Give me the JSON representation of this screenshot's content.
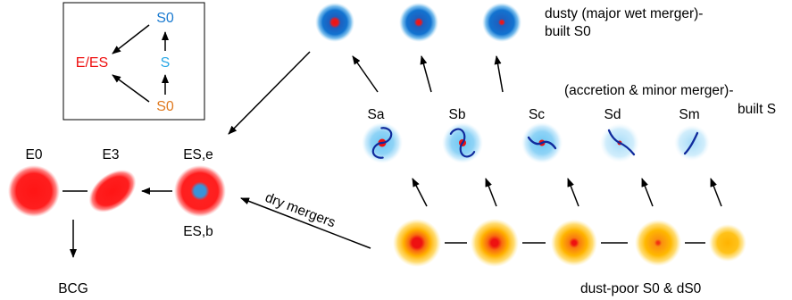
{
  "colors": {
    "red": "#ee1111",
    "e_red": "#ff2222",
    "blue_dark": "#0a6ac8",
    "blue_mid": "#2f95e0",
    "cyan": "#2aa8e6",
    "orange": "#e07a20",
    "yellow": "#ffc400",
    "spiral_blue": "#102a9c",
    "s_cyan_light": "#b9e6fb"
  },
  "inset": {
    "label_s0_top": "S0",
    "label_s": "S",
    "label_s0_bottom": "S0",
    "label_e_es": "E/ES"
  },
  "labels": {
    "dusty": [
      "dusty (major wet merger)-",
      "built S0"
    ],
    "accretion": [
      "(accretion & minor merger)-",
      "built S"
    ],
    "dust_poor": "dust-poor S0 & dS0",
    "dry_mergers": "dry mergers",
    "sequence": [
      "Sa",
      "Sb",
      "Sc",
      "Sd",
      "Sm"
    ],
    "e0": "E0",
    "e3": "E3",
    "es_e": "ES,e",
    "es_b": "ES,b",
    "bcg": "BCG"
  },
  "icons": {
    "dusty_s0": "dusty-s0-galaxy-icon",
    "spiral": "spiral-galaxy-icon",
    "dust_poor_s0": "dust-poor-s0-galaxy-icon",
    "elliptical": "elliptical-galaxy-icon"
  }
}
